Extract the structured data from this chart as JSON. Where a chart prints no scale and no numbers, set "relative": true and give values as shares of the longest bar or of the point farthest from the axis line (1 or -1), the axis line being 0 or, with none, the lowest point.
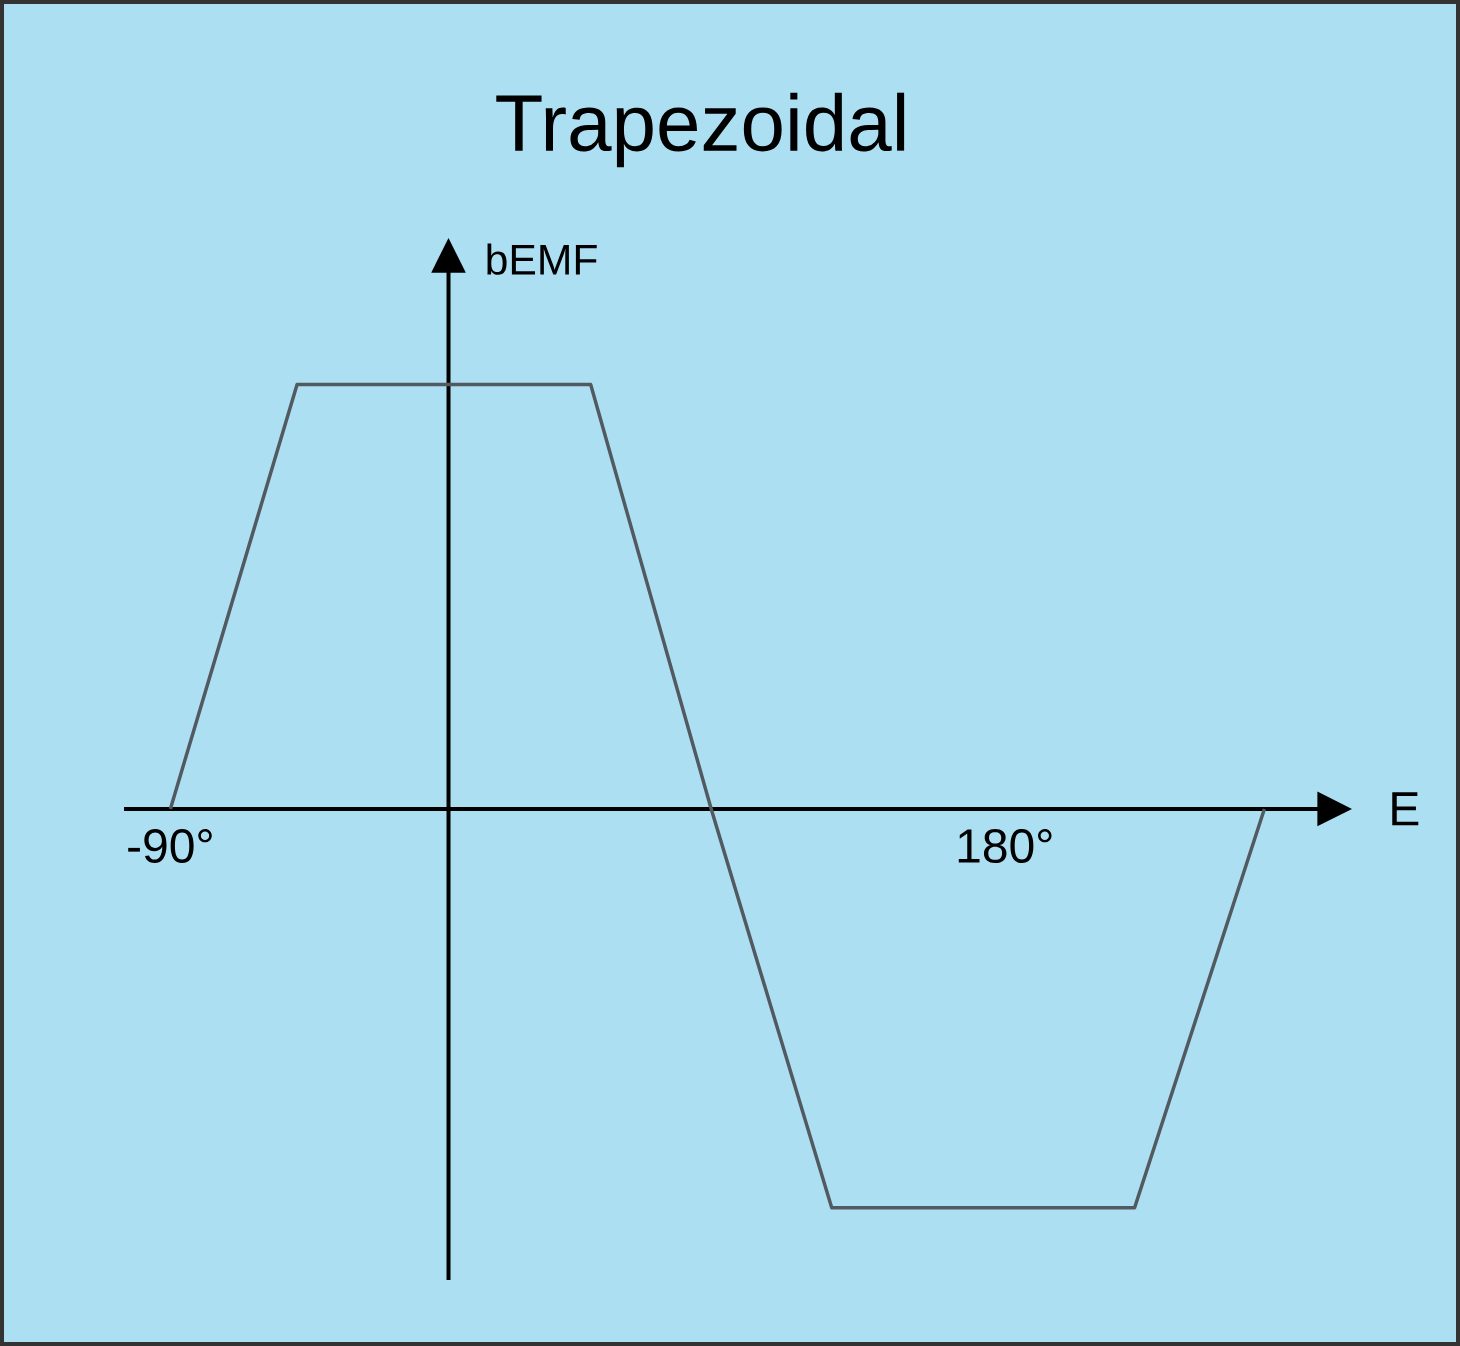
{
  "chart_data": {
    "type": "line",
    "title": "Trapezoidal",
    "xlabel": "E",
    "ylabel": "bEMF",
    "x": [
      -90,
      -49,
      46,
      85,
      124,
      222,
      264
    ],
    "values": [
      0,
      1,
      1,
      0,
      -0.94,
      -0.94,
      0
    ],
    "relative": true,
    "color": "#505a60",
    "xlim": [
      -105,
      282
    ],
    "xticks": [
      {
        "value": -90,
        "label": "-90°"
      },
      {
        "value": 180,
        "label": "180°"
      }
    ],
    "tick_labels": "x",
    "grid": false
  }
}
